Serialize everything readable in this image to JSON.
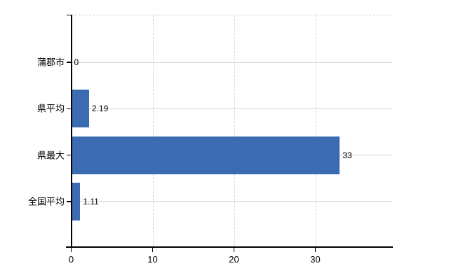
{
  "chart_data": {
    "type": "bar",
    "orientation": "horizontal",
    "title": "",
    "categories": [
      "蒲郡市",
      "県平均",
      "県最大",
      "全国平均"
    ],
    "values": [
      0,
      2.19,
      33,
      1.11
    ],
    "value_labels": [
      "0",
      "2.19",
      "33",
      "1.11"
    ],
    "x_ticks": [
      0,
      10,
      20,
      30
    ],
    "xlim": [
      0,
      39.5
    ],
    "grid": true,
    "legend": false,
    "gridline_style_vertical": "dashed",
    "gridline_style_horizontal": "solid",
    "colors": {
      "bar": "#3b6bb0",
      "axis": "#000000",
      "h_gridline": "#d6d3ce",
      "v_gridline": "#d7d2d7",
      "text": "#000000",
      "background": "#ffffff"
    }
  }
}
